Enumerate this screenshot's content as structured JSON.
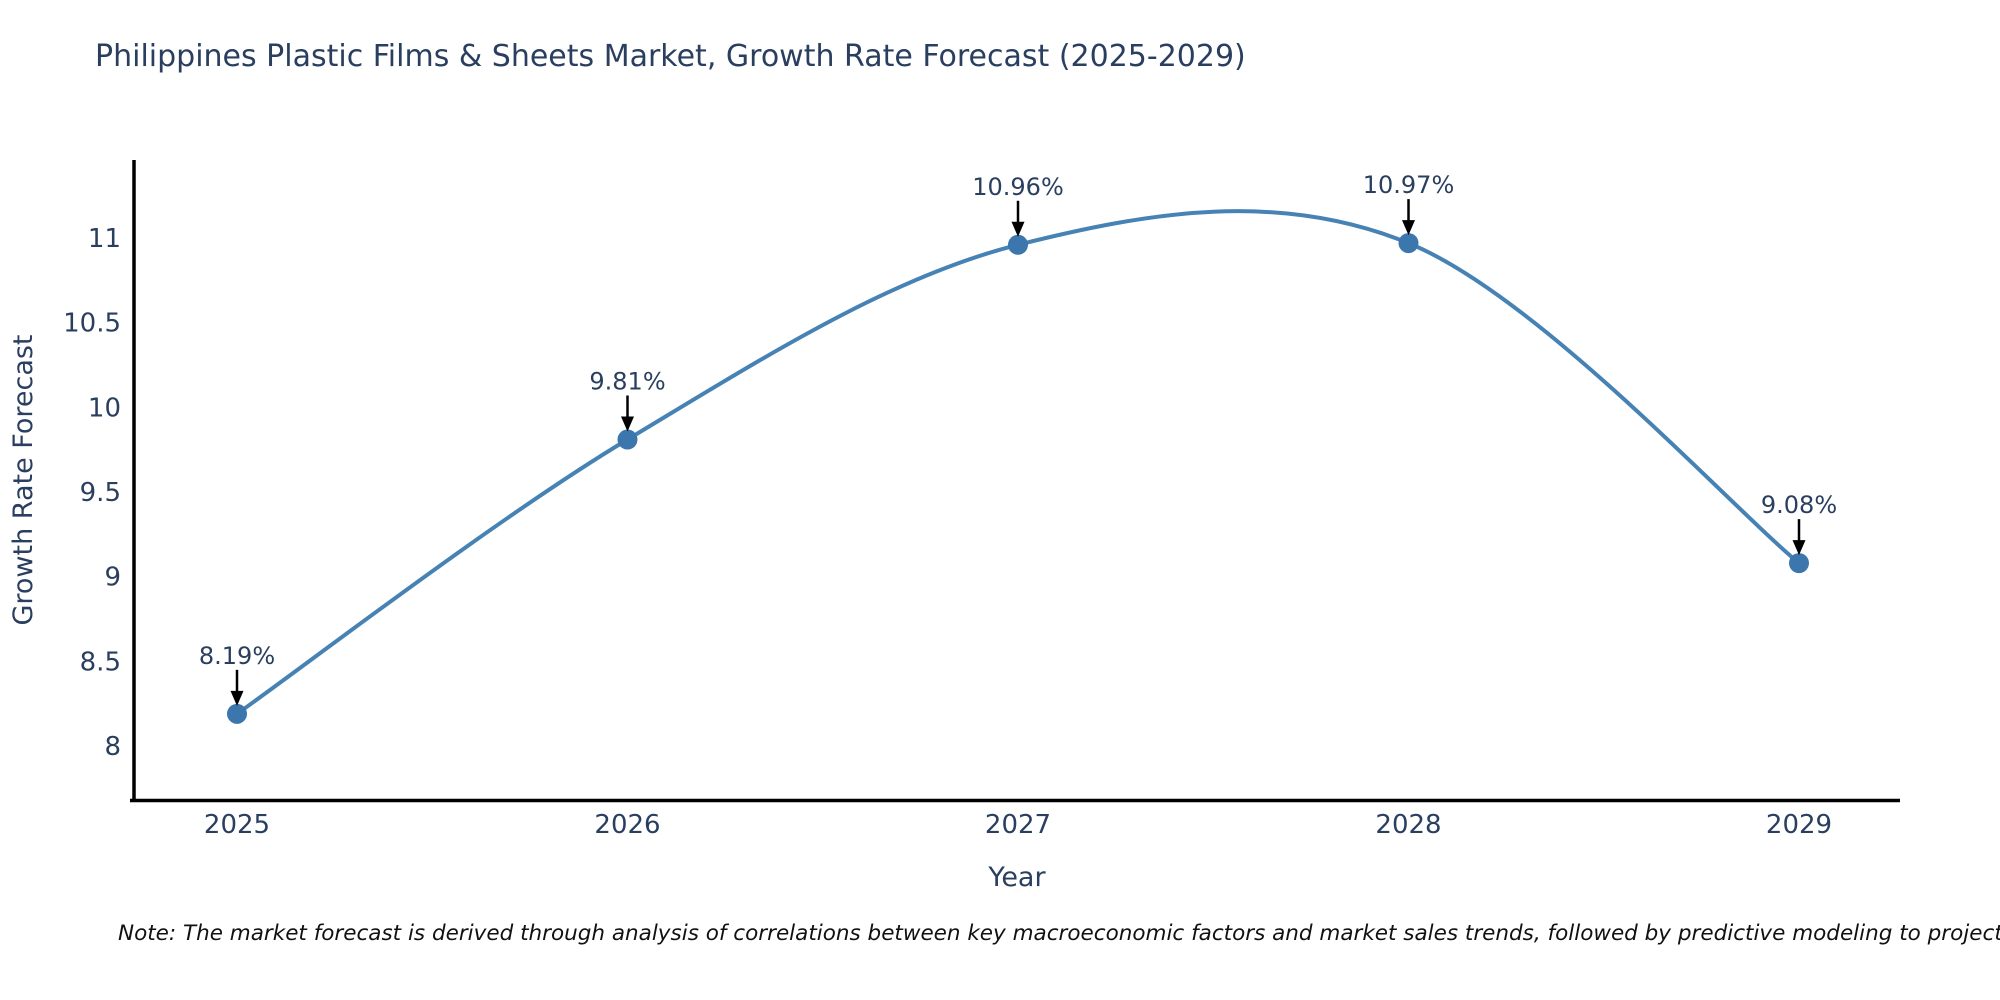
{
  "chart_data": {
    "type": "line",
    "title": "Philippines Plastic Films & Sheets Market, Growth Rate Forecast (2025-2029)",
    "xlabel": "Year",
    "ylabel": "Growth Rate Forecast",
    "categories": [
      "2025",
      "2026",
      "2027",
      "2028",
      "2029"
    ],
    "series": [
      {
        "name": "Growth Rate Forecast",
        "values": [
          8.19,
          9.81,
          10.96,
          10.97,
          9.08
        ],
        "point_labels": [
          "8.19%",
          "9.81%",
          "10.96%",
          "10.97%",
          "9.08%"
        ]
      }
    ],
    "yticks": [
      8,
      8.5,
      9,
      9.5,
      10,
      10.5,
      11
    ],
    "ytick_labels": [
      "8",
      "8.5",
      "9",
      "9.5",
      "10",
      "10.5",
      "11"
    ],
    "ylim": [
      7.68,
      11.46
    ],
    "line_shape": "spline",
    "grid": false,
    "legend_position": "none",
    "annotations_style": "value labels with downward arrows above each point",
    "colors": {
      "line": "#4682b4",
      "marker": "#3b76ad",
      "text": "#2a3f5f",
      "axis_line": "#000000",
      "annotation_arrow": "#000000",
      "note_text": "#111111",
      "background": "#ffffff"
    },
    "note": "Note: The market forecast is derived through analysis of correlations between key macroeconomic factors and market sales trends, followed by predictive modeling to project future sal"
  }
}
